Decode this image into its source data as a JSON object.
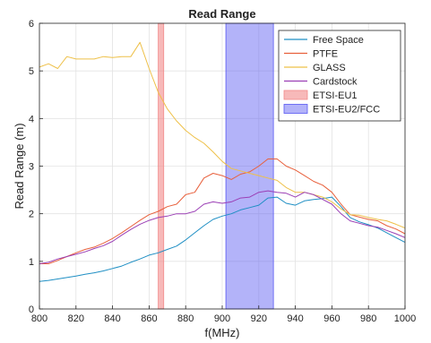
{
  "chart_data": {
    "type": "line",
    "title": "Read Range",
    "xlabel": "f(MHz)",
    "ylabel": "Read Range (m)",
    "xlim": [
      800,
      1000
    ],
    "ylim": [
      0,
      6
    ],
    "xticks": [
      "800",
      "820",
      "840",
      "860",
      "880",
      "900",
      "920",
      "940",
      "960",
      "980",
      "1000"
    ],
    "yticks": [
      "0",
      "1",
      "2",
      "3",
      "4",
      "5",
      "6"
    ],
    "grid": true,
    "legend_position": "top-right",
    "bands": [
      {
        "name": "ETSI-EU1",
        "x0": 865,
        "x1": 868,
        "color": "#f28b8b",
        "opacity": 0.6
      },
      {
        "name": "ETSI-EU2/FCC",
        "x0": 902,
        "x1": 928,
        "color": "#5757f2",
        "opacity": 0.45
      }
    ],
    "series": [
      {
        "name": "Free Space",
        "color": "#1f8fc4",
        "x": [
          800,
          805,
          810,
          815,
          820,
          825,
          830,
          835,
          840,
          845,
          850,
          855,
          860,
          865,
          870,
          875,
          880,
          885,
          890,
          895,
          900,
          905,
          910,
          915,
          920,
          925,
          930,
          935,
          940,
          945,
          950,
          955,
          960,
          965,
          970,
          975,
          980,
          985,
          990,
          995,
          1000
        ],
        "y": [
          0.58,
          0.6,
          0.63,
          0.66,
          0.69,
          0.73,
          0.76,
          0.8,
          0.85,
          0.9,
          0.98,
          1.05,
          1.13,
          1.18,
          1.25,
          1.32,
          1.45,
          1.6,
          1.75,
          1.88,
          1.95,
          2.0,
          2.08,
          2.13,
          2.18,
          2.33,
          2.35,
          2.22,
          2.18,
          2.27,
          2.3,
          2.32,
          2.35,
          2.15,
          1.92,
          1.83,
          1.77,
          1.7,
          1.6,
          1.5,
          1.4
        ]
      },
      {
        "name": "PTFE",
        "color": "#e8603c",
        "x": [
          800,
          805,
          810,
          815,
          820,
          825,
          830,
          835,
          840,
          845,
          850,
          855,
          860,
          865,
          870,
          875,
          880,
          885,
          890,
          895,
          900,
          905,
          910,
          915,
          920,
          925,
          930,
          935,
          940,
          945,
          950,
          955,
          960,
          965,
          970,
          975,
          980,
          985,
          990,
          995,
          1000
        ],
        "y": [
          0.95,
          0.95,
          1.02,
          1.1,
          1.18,
          1.25,
          1.3,
          1.38,
          1.48,
          1.6,
          1.73,
          1.86,
          1.98,
          2.05,
          2.15,
          2.2,
          2.4,
          2.45,
          2.75,
          2.85,
          2.8,
          2.72,
          2.83,
          2.88,
          3.0,
          3.15,
          3.15,
          3.0,
          2.92,
          2.8,
          2.68,
          2.6,
          2.45,
          2.2,
          1.98,
          1.93,
          1.88,
          1.85,
          1.75,
          1.68,
          1.58
        ]
      },
      {
        "name": "GLASS",
        "color": "#eec048",
        "x": [
          800,
          805,
          810,
          815,
          820,
          825,
          830,
          835,
          840,
          845,
          850,
          855,
          860,
          865,
          870,
          875,
          880,
          885,
          890,
          895,
          900,
          905,
          910,
          915,
          920,
          925,
          930,
          935,
          940,
          945,
          950,
          955,
          960,
          965,
          970,
          975,
          980,
          985,
          990,
          995,
          1000
        ],
        "y": [
          5.08,
          5.15,
          5.05,
          5.3,
          5.25,
          5.25,
          5.25,
          5.3,
          5.28,
          5.3,
          5.3,
          5.6,
          5.05,
          4.55,
          4.2,
          3.95,
          3.75,
          3.6,
          3.48,
          3.3,
          3.1,
          2.95,
          2.9,
          2.85,
          2.8,
          2.75,
          2.7,
          2.55,
          2.45,
          2.45,
          2.4,
          2.35,
          2.25,
          2.1,
          1.98,
          1.97,
          1.92,
          1.88,
          1.85,
          1.78,
          1.7
        ]
      },
      {
        "name": "Cardstock",
        "color": "#9b3fb5",
        "x": [
          800,
          805,
          810,
          815,
          820,
          825,
          830,
          835,
          840,
          845,
          850,
          855,
          860,
          865,
          870,
          875,
          880,
          885,
          890,
          895,
          900,
          905,
          910,
          915,
          920,
          925,
          930,
          935,
          940,
          945,
          950,
          955,
          960,
          965,
          970,
          975,
          980,
          985,
          990,
          995,
          1000
        ],
        "y": [
          0.95,
          0.98,
          1.05,
          1.1,
          1.15,
          1.2,
          1.27,
          1.33,
          1.42,
          1.55,
          1.67,
          1.78,
          1.86,
          1.92,
          1.95,
          2.0,
          2.0,
          2.05,
          2.2,
          2.25,
          2.22,
          2.25,
          2.33,
          2.35,
          2.45,
          2.48,
          2.45,
          2.43,
          2.35,
          2.45,
          2.4,
          2.3,
          2.2,
          2.0,
          1.85,
          1.8,
          1.75,
          1.72,
          1.65,
          1.58,
          1.5
        ]
      }
    ]
  }
}
